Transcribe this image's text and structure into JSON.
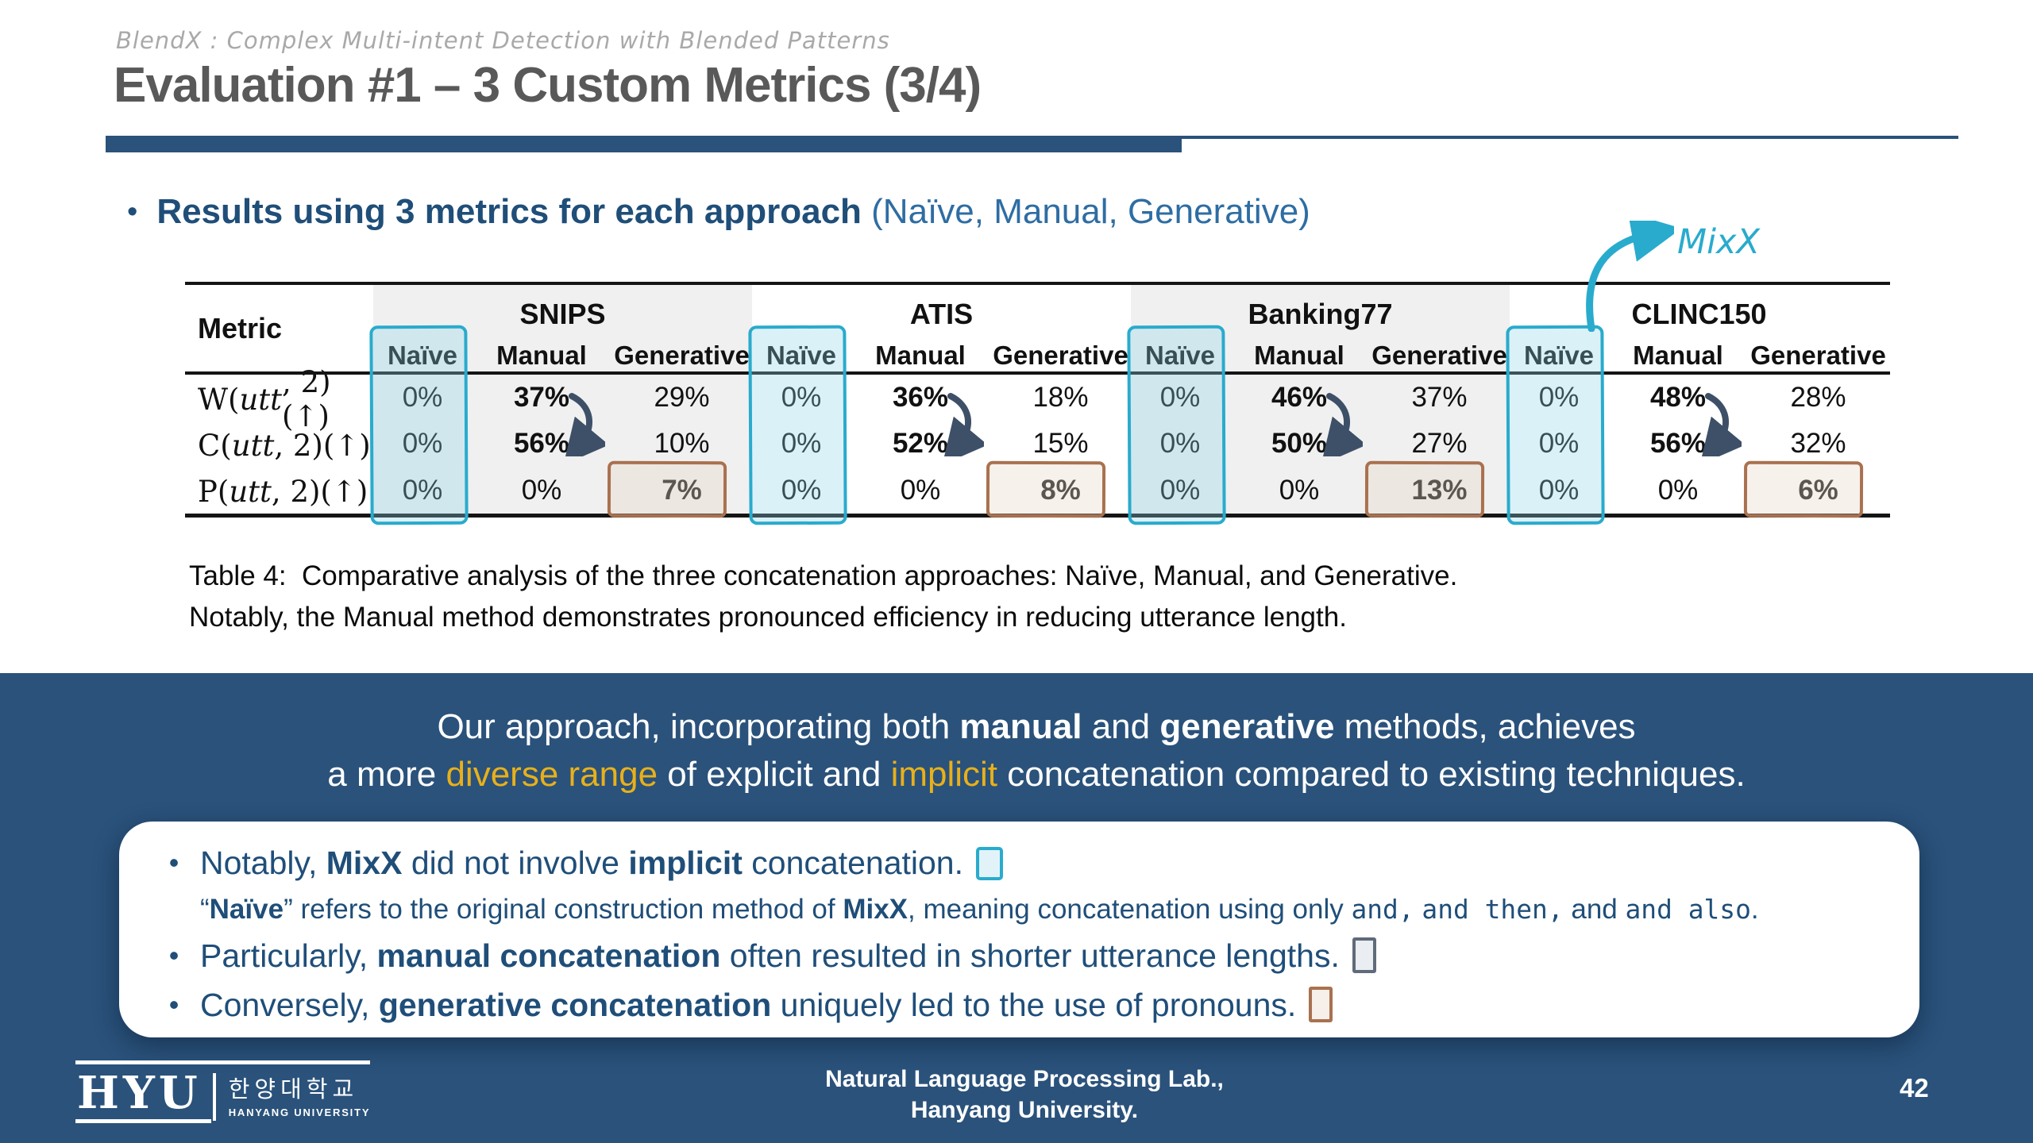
{
  "colors": {
    "navy": "#2A527B",
    "title_gray": "#595959",
    "kicker_gray": "#A9A9A9",
    "text_blue": "#1F4E79",
    "text_blue_light": "#2E6DA3",
    "gold": "#E8B01A",
    "cyan": "#29ABCD",
    "brown": "#A9714F",
    "square_gray": "#5F6B7A",
    "table_shade": "#F0F0F0",
    "arrow_navy": "#3E5068",
    "rule_black": "#151515"
  },
  "header": {
    "kicker": "BlendX : Complex Multi-intent Detection with Blended Patterns",
    "title": "Evaluation #1 – 3 Custom Metrics (3/4)"
  },
  "heading": {
    "segments": [
      {
        "t": "Results using 3 metrics for each approach",
        "b": true
      },
      {
        "t": " (Naïve, Manual, Generative)",
        "d": true
      }
    ]
  },
  "mixx_label": "MixX",
  "table": {
    "metric_header": "Metric",
    "col_headers": [
      "Naïve",
      "Manual",
      "Generative"
    ],
    "metrics": [
      [
        {
          "t": "W("
        },
        {
          "t": "utt",
          "i": true
        },
        {
          "t": ", 2)(↑)"
        }
      ],
      [
        {
          "t": "C("
        },
        {
          "t": "utt",
          "i": true
        },
        {
          "t": ", 2)(↑)"
        }
      ],
      [
        {
          "t": "P("
        },
        {
          "t": "utt",
          "i": true
        },
        {
          "t": ", 2)(↑)"
        }
      ]
    ],
    "groups": [
      {
        "name": "SNIPS",
        "shaded": true,
        "values": [
          [
            "0%",
            "37%",
            "29%"
          ],
          [
            "0%",
            "56%",
            "10%"
          ],
          [
            "0%",
            "0%",
            "7%"
          ]
        ]
      },
      {
        "name": "ATIS",
        "shaded": false,
        "values": [
          [
            "0%",
            "36%",
            "18%"
          ],
          [
            "0%",
            "52%",
            "15%"
          ],
          [
            "0%",
            "0%",
            "8%"
          ]
        ]
      },
      {
        "name": "Banking77",
        "shaded": true,
        "values": [
          [
            "0%",
            "46%",
            "37%"
          ],
          [
            "0%",
            "50%",
            "27%"
          ],
          [
            "0%",
            "0%",
            "13%"
          ]
        ]
      },
      {
        "name": "CLINC150",
        "shaded": false,
        "values": [
          [
            "0%",
            "48%",
            "28%"
          ],
          [
            "0%",
            "56%",
            "32%"
          ],
          [
            "0%",
            "0%",
            "6%"
          ]
        ]
      }
    ]
  },
  "caption": {
    "line1": "Table 4:  Comparative analysis of the three concatenation approaches: Naïve, Manual, and Generative.",
    "line2": "Notably, the Manual method demonstrates pronounced efficiency in reducing utterance length."
  },
  "banner": {
    "line1": [
      {
        "t": "Our approach, incorporating both "
      },
      {
        "t": "manual",
        "b": true
      },
      {
        "t": " and "
      },
      {
        "t": "generative",
        "b": true
      },
      {
        "t": " methods, achieves"
      }
    ],
    "line2": [
      {
        "t": "a more "
      },
      {
        "t": "diverse range",
        "y": true
      },
      {
        "t": " of explicit and "
      },
      {
        "t": "implicit",
        "y": true
      },
      {
        "t": " concatenation compared to existing techniques."
      }
    ]
  },
  "notes": {
    "rows": [
      {
        "bullet": true,
        "size": "lg",
        "square": "cyan",
        "segments": [
          {
            "t": "Notably, "
          },
          {
            "t": "MixX",
            "b": true
          },
          {
            "t": " did not involve "
          },
          {
            "t": "implicit",
            "b": true
          },
          {
            "t": " concatenation."
          }
        ]
      },
      {
        "bullet": false,
        "size": "sm",
        "square": null,
        "segments": [
          {
            "t": "“"
          },
          {
            "t": "Naïve",
            "b": true
          },
          {
            "t": "” refers to the original construction method of "
          },
          {
            "t": "MixX",
            "b": true
          },
          {
            "t": ", meaning concatenation using only "
          },
          {
            "t": "and,",
            "m": true
          },
          {
            "t": " "
          },
          {
            "t": "and then,",
            "m": true
          },
          {
            "t": " and "
          },
          {
            "t": "and also",
            "m": true
          },
          {
            "t": "."
          }
        ]
      },
      {
        "bullet": true,
        "size": "lg",
        "square": "gray",
        "segments": [
          {
            "t": "Particularly, "
          },
          {
            "t": "manual concatenation",
            "b": true
          },
          {
            "t": " often resulted in shorter utterance lengths."
          }
        ]
      },
      {
        "bullet": true,
        "size": "lg",
        "square": "brown",
        "segments": [
          {
            "t": "Conversely, "
          },
          {
            "t": "generative concatenation",
            "b": true
          },
          {
            "t": " uniquely led to the use of pronouns."
          }
        ]
      }
    ]
  },
  "footer": {
    "logo": {
      "abbr": "HYU",
      "korean": "한양대학교",
      "english": "HANYANG UNIVERSITY"
    },
    "lab_line1": "Natural Language Processing Lab.,",
    "lab_line2": "Hanyang University.",
    "page_number": "42"
  }
}
